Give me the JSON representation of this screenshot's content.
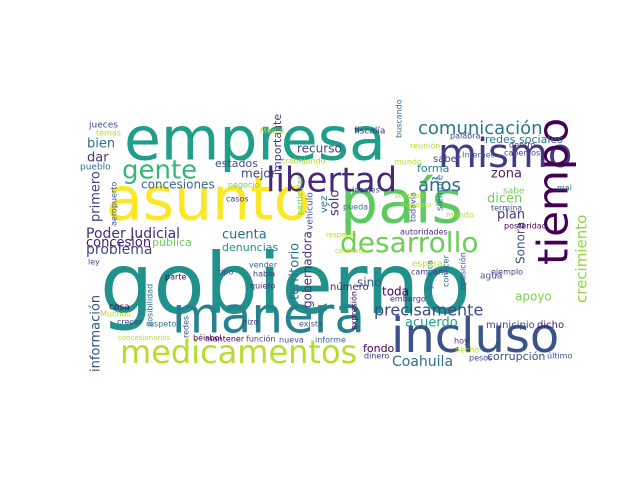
{
  "palette": {
    "viridis_dark": "#440154",
    "indigo": "#3b528b",
    "blue": "#31688e",
    "teal": "#21918c",
    "green": "#35b779",
    "lime": "#90d743",
    "yellow": "#fde725"
  },
  "words": [
    {
      "text": "gobierno",
      "color": "#21918c"
    },
    {
      "text": "asunto",
      "color": "#fde725"
    },
    {
      "text": "país",
      "color": "#5ec962"
    },
    {
      "text": "empresa",
      "color": "#1f9e89"
    },
    {
      "text": "manera",
      "color": "#26828e"
    },
    {
      "text": "incluso",
      "color": "#3b528b"
    },
    {
      "text": "medicamentos",
      "color": "#b5de2b"
    },
    {
      "text": "mismo",
      "color": "#443983"
    },
    {
      "text": "tiempo",
      "color": "#440154"
    },
    {
      "text": "libertad",
      "color": "#482878"
    },
    {
      "text": "desarrollo",
      "color": "#6ece58"
    },
    {
      "text": "gente",
      "color": "#35b779"
    },
    {
      "text": "comunicación",
      "color": "#2a788e"
    },
    {
      "text": "años",
      "color": "#31688e"
    },
    {
      "text": "precisamente",
      "color": "#3e4989"
    },
    {
      "text": "crecimiento",
      "color": "#90d743"
    },
    {
      "text": "Coahuila",
      "color": "#2c728e"
    },
    {
      "text": "Poder Judicial",
      "color": "#472d7b"
    },
    {
      "text": "problema",
      "color": "#3e4a89"
    },
    {
      "text": "concesión",
      "color": "#481a6c"
    },
    {
      "text": "información",
      "color": "#3b528b"
    },
    {
      "text": "bien",
      "color": "#2e6e8e"
    },
    {
      "text": "dar",
      "color": "#46327e"
    },
    {
      "text": "mejor",
      "color": "#3f4788"
    },
    {
      "text": "concesiones",
      "color": "#31688e"
    },
    {
      "text": "estados",
      "color": "#3b528b"
    },
    {
      "text": "primero",
      "color": "#414487"
    },
    {
      "text": "cuenta",
      "color": "#2d708e"
    },
    {
      "text": "denuncias",
      "color": "#21918c"
    },
    {
      "text": "pública",
      "color": "#6ece58"
    },
    {
      "text": "acuerdo",
      "color": "#1fa187"
    },
    {
      "text": "plan",
      "color": "#443983"
    },
    {
      "text": "dicen",
      "color": "#73d056"
    },
    {
      "text": "zona",
      "color": "#481f70"
    },
    {
      "text": "forma",
      "color": "#26828e"
    },
    {
      "text": "redes sociales",
      "color": "#2a788e"
    },
    {
      "text": "saber",
      "color": "#3e4989"
    },
    {
      "text": "apoyo",
      "color": "#7ad151"
    },
    {
      "text": "sino",
      "color": "#365c8d"
    },
    {
      "text": "toda",
      "color": "#440154"
    },
    {
      "text": "territorio",
      "color": "#2a788e"
    },
    {
      "text": "gobernadora",
      "color": "#46337e"
    },
    {
      "text": "sólo",
      "color": "#46327e"
    },
    {
      "text": "Sonora",
      "color": "#3b528b"
    },
    {
      "text": "recurso",
      "color": "#424086"
    },
    {
      "text": "fondo",
      "color": "#440154"
    },
    {
      "text": "municipio",
      "color": "#3e4989"
    },
    {
      "text": "dicho",
      "color": "#481769"
    },
    {
      "text": "corrupción",
      "color": "#3b528b"
    },
    {
      "text": "número",
      "color": "#481f70"
    },
    {
      "text": "importante",
      "color": "#453781"
    },
    {
      "text": "vez",
      "color": "#2c728e"
    },
    {
      "text": "mal",
      "color": "#2a788e"
    },
    {
      "text": "jueces",
      "color": "#3b528b"
    },
    {
      "text": "temas",
      "color": "#b5de2b"
    },
    {
      "text": "pueblo",
      "color": "#2e6e8e"
    },
    {
      "text": "casos",
      "color": "#443983"
    },
    {
      "text": "negocio",
      "color": "#6ece58"
    },
    {
      "text": "Medio",
      "color": "#b5de2b"
    },
    {
      "text": "fiscalía",
      "color": "#46327e"
    },
    {
      "text": "buscando",
      "color": "#31688e"
    },
    {
      "text": "palabra",
      "color": "#3e4a89"
    },
    {
      "text": "trabajando",
      "color": "#b5de2b"
    },
    {
      "text": "reunión",
      "color": "#b5de2b"
    },
    {
      "text": "Internet",
      "color": "#31688e"
    },
    {
      "text": "cabemos",
      "color": "#3e4989"
    },
    {
      "text": "mundo",
      "color": "#b5de2b"
    },
    {
      "text": "dentro",
      "color": "#472d7b"
    },
    {
      "text": "sabe",
      "color": "#6ece58"
    },
    {
      "text": "siempre",
      "color": "#2c728e"
    },
    {
      "text": "termina",
      "color": "#3b528b"
    },
    {
      "text": "posteridad",
      "color": "#440154"
    },
    {
      "text": "locales",
      "color": "#3b528b"
    },
    {
      "text": "pueda",
      "color": "#2e6e8e"
    },
    {
      "text": "vehículo",
      "color": "#3b528b"
    },
    {
      "text": "todavía",
      "color": "#3e4989"
    },
    {
      "text": "autoridades",
      "color": "#472d7b"
    },
    {
      "text": "mundo",
      "color": "#b5de2b"
    },
    {
      "text": "esperar",
      "color": "#b5de2b"
    },
    {
      "text": "campaña",
      "color": "#443983"
    },
    {
      "text": "política",
      "color": "#2a788e"
    },
    {
      "text": "conocer",
      "color": "#31688e"
    },
    {
      "text": "oposición",
      "color": "#3b528b"
    },
    {
      "text": "embargo",
      "color": "#46327e"
    },
    {
      "text": "agua",
      "color": "#3b528b"
    },
    {
      "text": "ejemplo",
      "color": "#46327e"
    },
    {
      "text": "ley",
      "color": "#3b528b"
    },
    {
      "text": "cosa",
      "color": "#440154"
    },
    {
      "text": "Muchas",
      "color": "#b5de2b"
    },
    {
      "text": "tipo",
      "color": "#3b528b"
    },
    {
      "text": "habla",
      "color": "#443983"
    },
    {
      "text": "quiero",
      "color": "#46327e"
    },
    {
      "text": "parte",
      "color": "#440154"
    },
    {
      "text": "posibilidad",
      "color": "#2c728e"
    },
    {
      "text": "aeropuerto",
      "color": "#3b528b"
    },
    {
      "text": "vender",
      "color": "#31688e"
    },
    {
      "text": "respeto",
      "color": "#2a788e"
    },
    {
      "text": "crecer",
      "color": "#3e4989"
    },
    {
      "text": "béisbol",
      "color": "#440154"
    },
    {
      "text": "redes",
      "color": "#3b528b"
    },
    {
      "text": "hizo",
      "color": "#46327e"
    },
    {
      "text": "existe",
      "color": "#3b528b"
    },
    {
      "text": "expresión",
      "color": "#440154"
    },
    {
      "text": "función",
      "color": "#443983"
    },
    {
      "text": "nueva",
      "color": "#3b528b"
    },
    {
      "text": "informe",
      "color": "#31688e"
    },
    {
      "text": "mantener",
      "color": "#440154"
    },
    {
      "text": "concesionarios",
      "color": "#b5de2b"
    },
    {
      "text": "dinero",
      "color": "#46327e"
    },
    {
      "text": "pesos",
      "color": "#3e4989"
    },
    {
      "text": "último",
      "color": "#3b528b"
    },
    {
      "text": "hoy",
      "color": "#46327e"
    },
    {
      "text": "hecho",
      "color": "#b5de2b"
    },
    {
      "text": "particular",
      "color": "#6ece58"
    },
    {
      "text": "respecto",
      "color": "#b5de2b"
    },
    {
      "text": "contexto",
      "color": "#b5de2b"
    },
    {
      "text": "solucion",
      "color": "#b5de2b"
    },
    {
      "text": "mandato",
      "color": "#b5de2b"
    }
  ]
}
